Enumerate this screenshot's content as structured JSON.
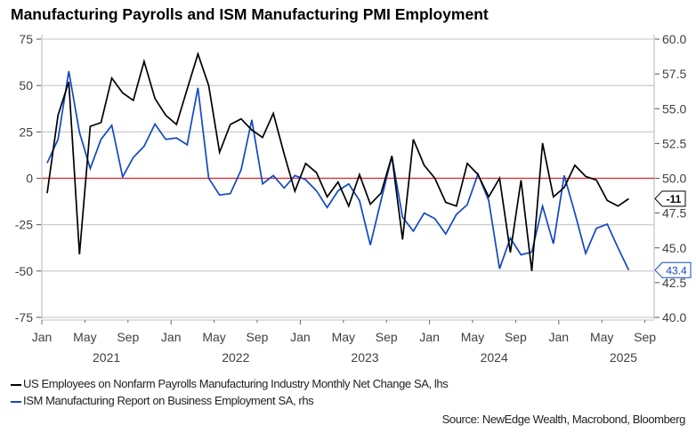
{
  "chart_data": {
    "type": "line",
    "title": "Manufacturing Payrolls and ISM Manufacturing PMI Employment",
    "x_start": "2021-01",
    "x_tick_labels": [
      "Jan",
      "May",
      "Sep",
      "Jan",
      "May",
      "Sep",
      "Jan",
      "May",
      "Sep",
      "Jan",
      "May",
      "Sep",
      "Jan",
      "May",
      "Sep"
    ],
    "year_labels": [
      "2021",
      "2022",
      "2023",
      "2024",
      "2025"
    ],
    "left_axis": {
      "ylim": [
        -75,
        75
      ],
      "ticks": [
        "75",
        "50",
        "25",
        "0",
        "-25",
        "-50",
        "-75"
      ]
    },
    "right_axis": {
      "ylim": [
        40,
        60
      ],
      "ticks": [
        "60.0",
        "57.5",
        "55.0",
        "52.5",
        "50.0",
        "47.5",
        "45.0",
        "42.5",
        "40.0"
      ]
    },
    "grid": true,
    "legend_position": "bottom-left",
    "series": [
      {
        "name": "US Employees on Nonfarm Payrolls Manufacturing Industry Monthly Net Change SA, lhs",
        "axis": "left",
        "color": "#000000",
        "end_label": "-11",
        "values": [
          -8,
          34,
          52,
          -41,
          28,
          30,
          54,
          46,
          42,
          63,
          43,
          34,
          29,
          48,
          67,
          50,
          14,
          29,
          32,
          26,
          22,
          35,
          13,
          -7,
          8,
          3,
          -10,
          -2,
          -15,
          2,
          -14,
          -8,
          12,
          -33,
          21,
          7,
          0,
          -13,
          -15,
          8,
          2,
          -10,
          0,
          -40,
          -1,
          -50,
          19,
          -10,
          -5,
          7,
          1,
          -1,
          -12,
          -15,
          -11
        ]
      },
      {
        "name": "ISM Manufacturing Report on Business Employment SA, rhs",
        "axis": "right",
        "color": "#1148c4",
        "end_label": "43.4",
        "values": [
          51.1,
          52.8,
          57.7,
          53.3,
          50.7,
          52.8,
          53.8,
          50.1,
          51.5,
          52.3,
          53.9,
          52.8,
          52.9,
          52.4,
          56.5,
          50.0,
          48.8,
          48.9,
          50.6,
          54.2,
          49.6,
          50.2,
          49.3,
          50.2,
          49.9,
          49.1,
          47.9,
          49.1,
          49.6,
          48.4,
          45.2,
          48.4,
          51.6,
          47.2,
          46.2,
          47.5,
          47.1,
          46.0,
          47.4,
          48.1,
          50.3,
          48.4,
          43.5,
          45.7,
          44.5,
          44.7,
          48.0,
          45.3,
          50.2,
          47.5,
          44.6,
          46.4,
          46.7,
          45.0,
          43.4
        ]
      }
    ],
    "reference_line": {
      "axis": "left",
      "value": 0,
      "color": "#e02020"
    }
  },
  "source": "Source: NewEdge Wealth, Macrobond, Bloomberg"
}
